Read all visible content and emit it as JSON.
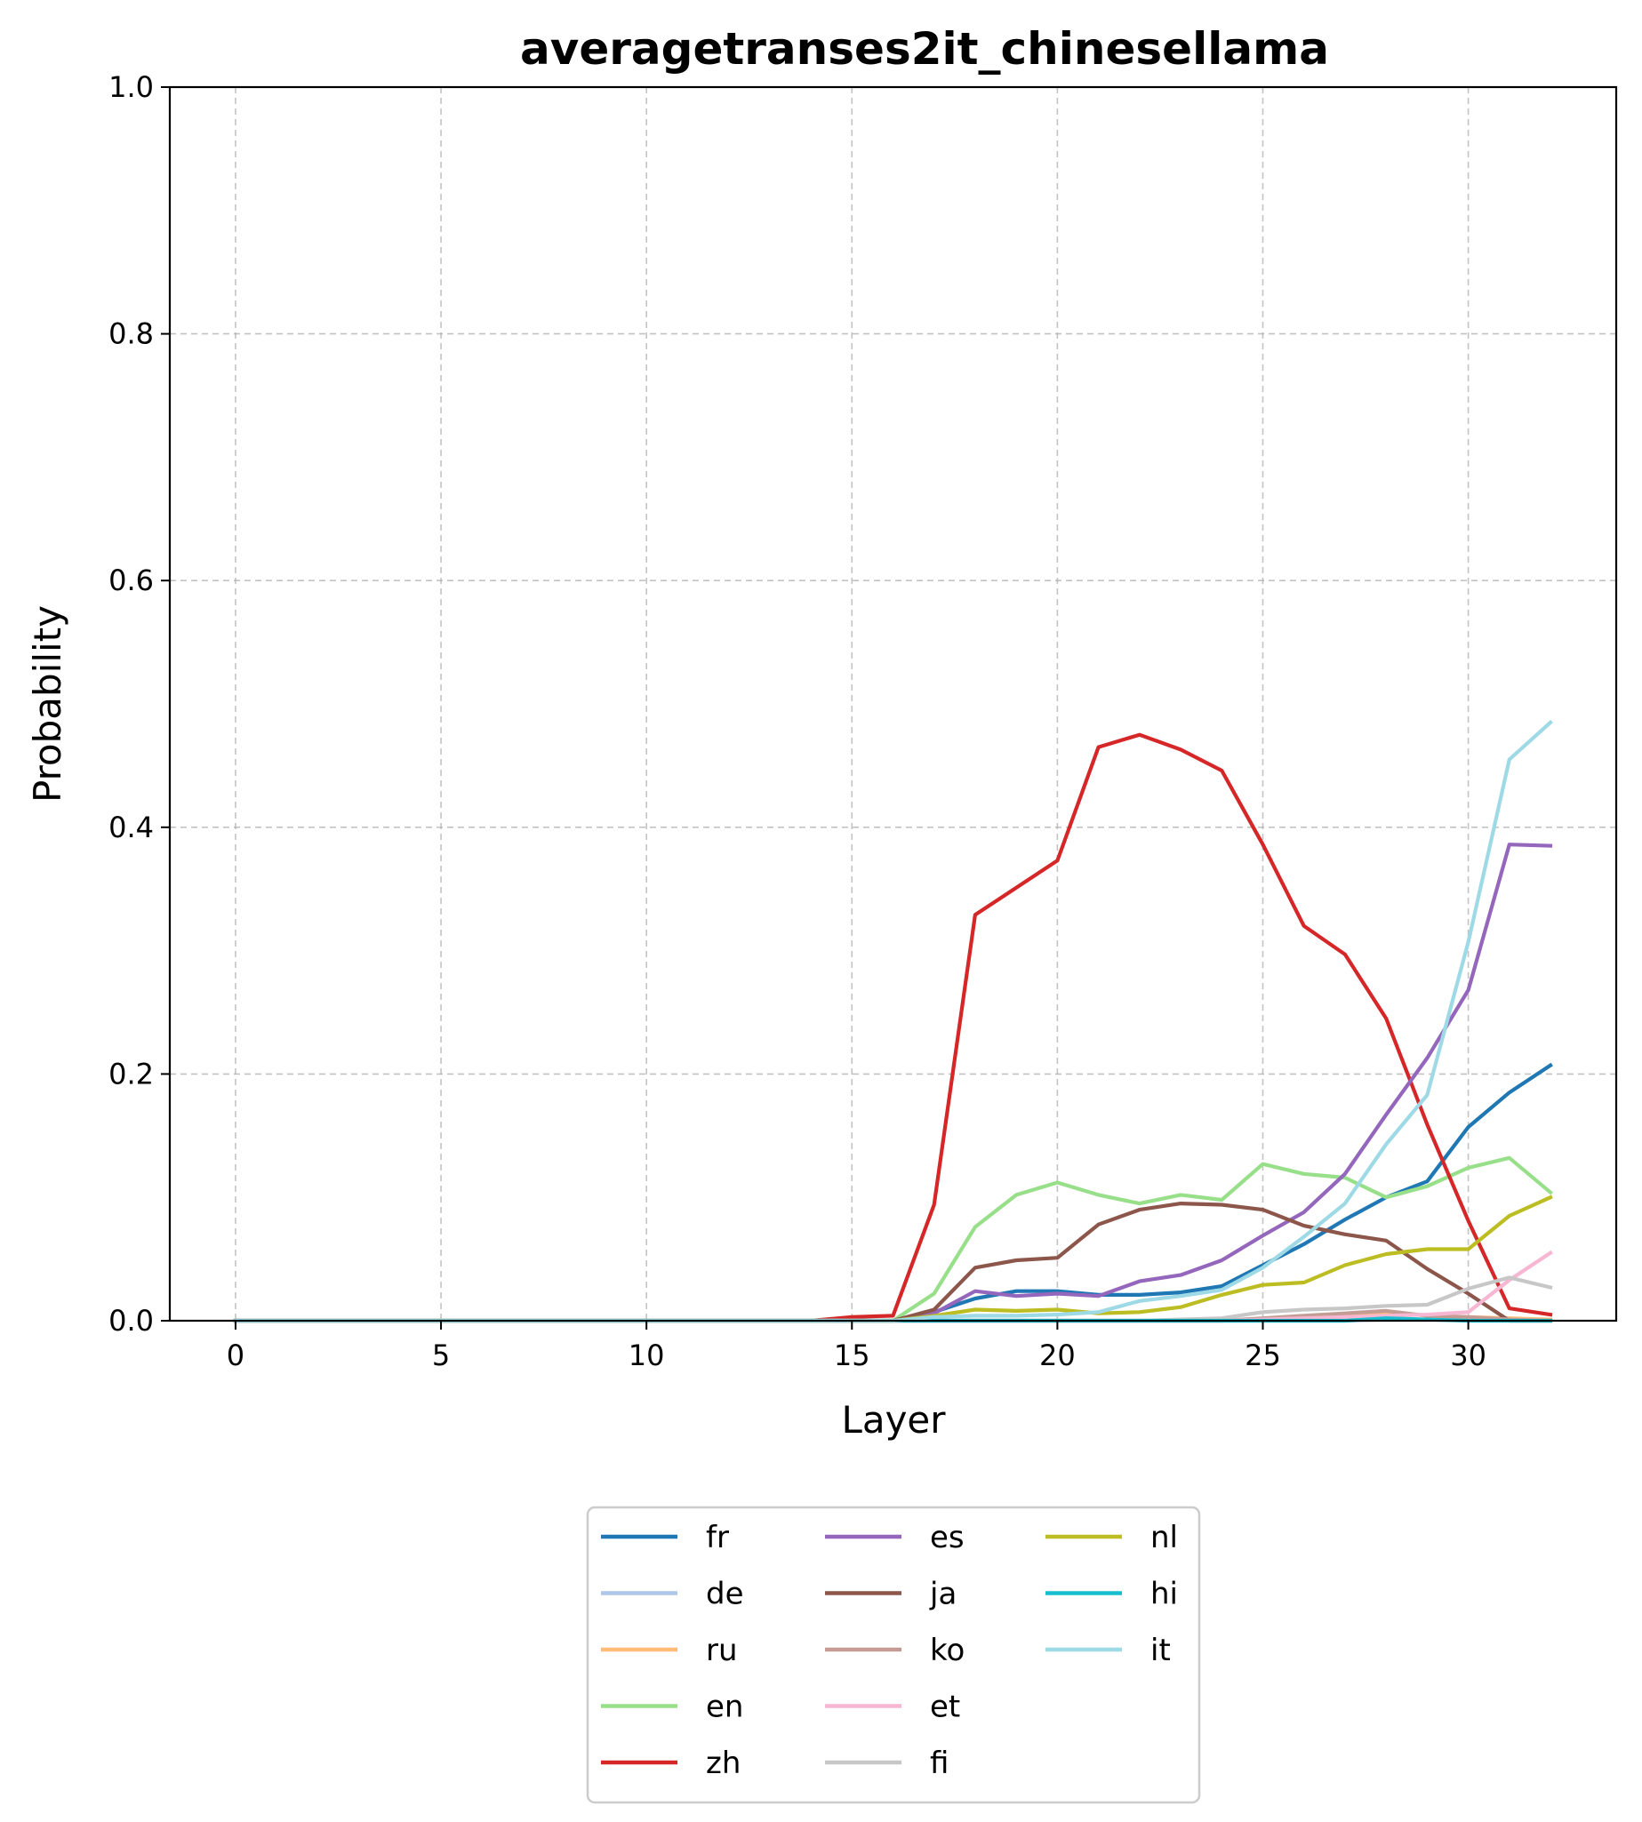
{
  "chart_data": {
    "type": "line",
    "title": "averagetranses2it_chinesellama",
    "xlabel": "Layer",
    "ylabel": "Probability",
    "xlim": [
      -1.6,
      33.6
    ],
    "ylim": [
      0,
      1.0
    ],
    "xticks": [
      0,
      5,
      10,
      15,
      20,
      25,
      30
    ],
    "yticks": [
      0.0,
      0.2,
      0.4,
      0.6,
      0.8,
      1.0
    ],
    "xtick_labels": [
      "0",
      "5",
      "10",
      "15",
      "20",
      "25",
      "30"
    ],
    "ytick_labels": [
      "0.0",
      "0.2",
      "0.4",
      "0.6",
      "0.8",
      "1.0"
    ],
    "grid": true,
    "legend_placement": "below plot, 3 columns",
    "x": [
      0,
      1,
      2,
      3,
      4,
      5,
      6,
      7,
      8,
      9,
      10,
      11,
      12,
      13,
      14,
      15,
      16,
      17,
      18,
      19,
      20,
      21,
      22,
      23,
      24,
      25,
      26,
      27,
      28,
      29,
      30,
      31,
      32
    ],
    "series": [
      {
        "name": "fr",
        "color": "#1f77b4",
        "values": [
          0,
          0,
          0,
          0,
          0,
          0,
          0,
          0,
          0,
          0,
          0,
          0,
          0,
          0,
          0,
          0,
          0,
          0.007,
          0.018,
          0.024,
          0.024,
          0.021,
          0.021,
          0.023,
          0.028,
          0.045,
          0.062,
          0.082,
          0.1,
          0.113,
          0.157,
          0.185,
          0.207
        ]
      },
      {
        "name": "de",
        "color": "#aec7e8",
        "values": [
          0,
          0,
          0,
          0,
          0,
          0,
          0,
          0,
          0,
          0,
          0,
          0,
          0,
          0,
          0,
          0,
          0,
          0,
          0,
          0,
          0,
          0,
          0,
          0,
          0,
          0,
          0,
          0,
          0.001,
          0.001,
          0.001,
          0.001,
          0.001
        ]
      },
      {
        "name": "ru",
        "color": "#ffbb78",
        "values": [
          0,
          0,
          0,
          0,
          0,
          0,
          0,
          0,
          0,
          0,
          0,
          0,
          0,
          0,
          0,
          0,
          0,
          0,
          0,
          0,
          0,
          0,
          0,
          0,
          0,
          0.001,
          0.003,
          0.005,
          0.007,
          0.004,
          0.003,
          0.002,
          0.001
        ]
      },
      {
        "name": "en",
        "color": "#98df8a",
        "values": [
          0,
          0,
          0,
          0,
          0,
          0,
          0,
          0,
          0,
          0,
          0,
          0,
          0,
          0,
          0,
          0,
          0,
          0.022,
          0.076,
          0.102,
          0.112,
          0.102,
          0.095,
          0.102,
          0.098,
          0.127,
          0.119,
          0.116,
          0.1,
          0.109,
          0.124,
          0.132,
          0.104
        ]
      },
      {
        "name": "zh",
        "color": "#d62728",
        "values": [
          0,
          0,
          0,
          0,
          0,
          0,
          0,
          0,
          0,
          0,
          0,
          0,
          0,
          0,
          0,
          0.003,
          0.004,
          0.094,
          0.329,
          0.351,
          0.373,
          0.465,
          0.475,
          0.463,
          0.446,
          0.386,
          0.32,
          0.297,
          0.245,
          0.159,
          0.081,
          0.01,
          0.005
        ]
      },
      {
        "name": "es",
        "color": "#9467bd",
        "values": [
          0,
          0,
          0,
          0,
          0,
          0,
          0,
          0,
          0,
          0,
          0,
          0,
          0,
          0,
          0,
          0,
          0,
          0.006,
          0.024,
          0.02,
          0.022,
          0.02,
          0.032,
          0.037,
          0.049,
          0.069,
          0.088,
          0.119,
          0.167,
          0.213,
          0.268,
          0.386,
          0.385
        ]
      },
      {
        "name": "ja",
        "color": "#8c564b",
        "values": [
          0,
          0,
          0,
          0,
          0,
          0,
          0,
          0,
          0,
          0,
          0,
          0,
          0,
          0,
          0,
          0,
          0,
          0.009,
          0.043,
          0.049,
          0.051,
          0.078,
          0.09,
          0.095,
          0.094,
          0.09,
          0.077,
          0.07,
          0.065,
          0.042,
          0.022,
          0,
          0
        ]
      },
      {
        "name": "ko",
        "color": "#c49c94",
        "values": [
          0,
          0,
          0,
          0,
          0,
          0,
          0,
          0,
          0,
          0,
          0,
          0,
          0,
          0,
          0,
          0,
          0,
          0,
          0,
          0,
          0,
          0,
          0,
          0,
          0,
          0.002,
          0.004,
          0.006,
          0.008,
          0.004,
          0.003,
          0.001,
          0
        ]
      },
      {
        "name": "et",
        "color": "#f7b6d2",
        "values": [
          0,
          0,
          0,
          0,
          0,
          0,
          0,
          0,
          0,
          0,
          0,
          0,
          0,
          0,
          0,
          0,
          0,
          0,
          0,
          0,
          0,
          0,
          0,
          0,
          0,
          0.001,
          0.002,
          0.003,
          0.004,
          0.005,
          0.007,
          0.033,
          0.055
        ]
      },
      {
        "name": "fi",
        "color": "#c7c7c7",
        "values": [
          0,
          0,
          0,
          0,
          0,
          0,
          0,
          0,
          0,
          0,
          0,
          0,
          0,
          0,
          0,
          0,
          0,
          0,
          0,
          0,
          0,
          0,
          0,
          0.001,
          0.002,
          0.007,
          0.009,
          0.01,
          0.012,
          0.013,
          0.026,
          0.035,
          0.027
        ]
      },
      {
        "name": "nl",
        "color": "#bcbd22",
        "values": [
          0,
          0,
          0,
          0,
          0,
          0,
          0,
          0,
          0,
          0,
          0,
          0,
          0,
          0,
          0,
          0,
          0,
          0.004,
          0.009,
          0.008,
          0.009,
          0.006,
          0.007,
          0.011,
          0.021,
          0.029,
          0.031,
          0.045,
          0.054,
          0.058,
          0.058,
          0.085,
          0.1
        ]
      },
      {
        "name": "hi",
        "color": "#17becf",
        "values": [
          0,
          0,
          0,
          0,
          0,
          0,
          0,
          0,
          0,
          0,
          0,
          0,
          0,
          0,
          0,
          0,
          0,
          0,
          0,
          0,
          0,
          0,
          0,
          0,
          0,
          0,
          0,
          0,
          0.002,
          0.001,
          0,
          0,
          0
        ]
      },
      {
        "name": "it",
        "color": "#9edae5",
        "values": [
          0,
          0,
          0,
          0,
          0,
          0,
          0,
          0,
          0,
          0,
          0,
          0,
          0,
          0,
          0,
          0,
          0,
          0.003,
          0.004,
          0.004,
          0.005,
          0.007,
          0.016,
          0.02,
          0.025,
          0.043,
          0.068,
          0.095,
          0.143,
          0.183,
          0.307,
          0.455,
          0.485
        ]
      }
    ]
  }
}
